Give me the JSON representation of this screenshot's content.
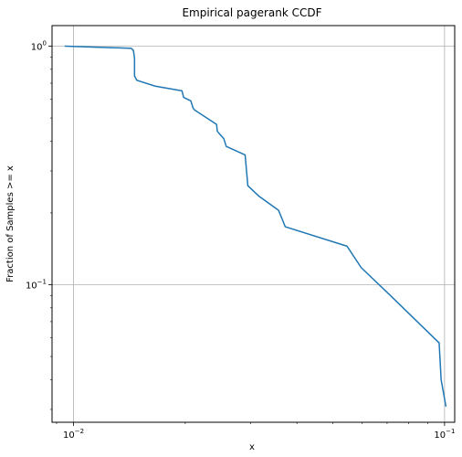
{
  "chart_data": {
    "type": "line",
    "title": "Empirical pagerank CCDF",
    "xlabel": "x",
    "ylabel": "Fraction of Samples >= x",
    "xscale": "log",
    "yscale": "log",
    "xlim": [
      0.00875,
      0.1065
    ],
    "ylim": [
      0.0265,
      1.22
    ],
    "grid": true,
    "color": "#1f77b4",
    "x_ticks": [
      {
        "value": 0.01,
        "base": "10",
        "exp": "−2"
      },
      {
        "value": 0.1,
        "base": "10",
        "exp": "−1"
      }
    ],
    "y_ticks": [
      {
        "value": 1,
        "base": "10",
        "exp": "0"
      },
      {
        "value": 0.1,
        "base": "10",
        "exp": "−1"
      }
    ],
    "series": [
      {
        "x": [
          0.0095,
          0.0143,
          0.0145,
          0.0146,
          0.0146,
          0.0148,
          0.0152,
          0.0166,
          0.0196,
          0.0198,
          0.0207,
          0.021,
          0.0212,
          0.0243,
          0.0244,
          0.0247,
          0.0254,
          0.0258,
          0.029,
          0.0295,
          0.0316,
          0.0357,
          0.0372,
          0.0546,
          0.0596,
          0.0715,
          0.0967,
          0.0979,
          0.1008
        ],
        "y": [
          1.0,
          0.98,
          0.96,
          0.89,
          0.75,
          0.72,
          0.71,
          0.68,
          0.65,
          0.61,
          0.59,
          0.55,
          0.54,
          0.47,
          0.44,
          0.43,
          0.41,
          0.38,
          0.35,
          0.26,
          0.235,
          0.205,
          0.175,
          0.145,
          0.118,
          0.09,
          0.057,
          0.04,
          0.031
        ]
      }
    ]
  }
}
